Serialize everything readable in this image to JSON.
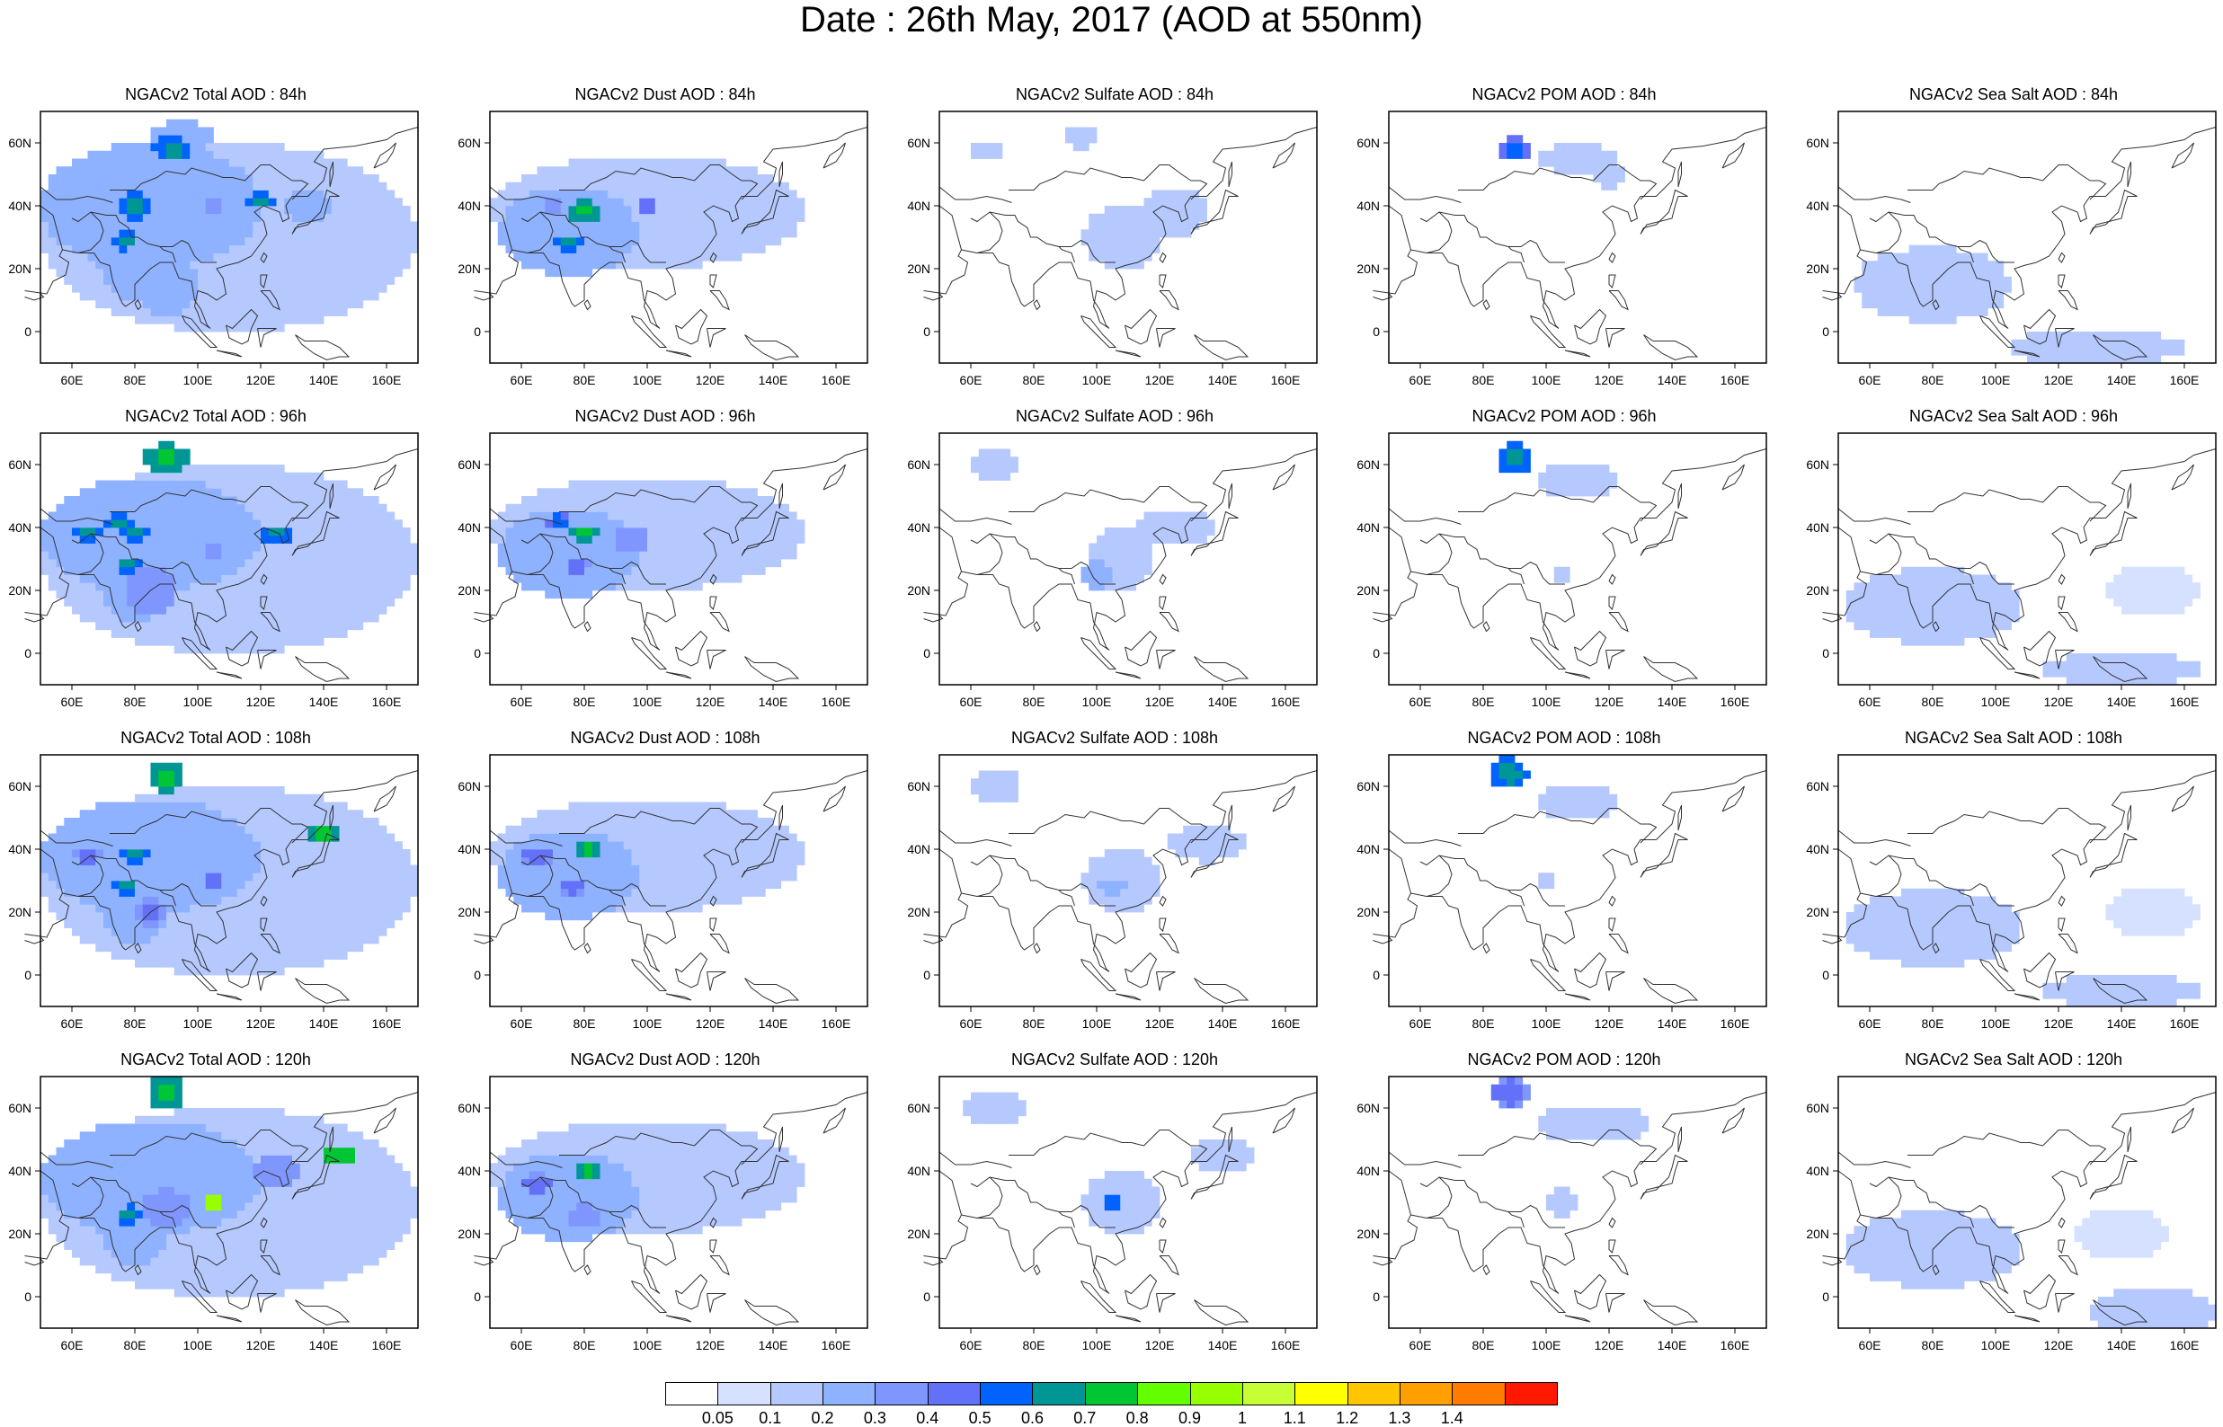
{
  "title": "Date : 26th May, 2017 (AOD at 550nm)",
  "panels": [
    {
      "title": "NGACv2 Total AOD : 84h",
      "species": "total",
      "lead": 84
    },
    {
      "title": "NGACv2 Dust AOD : 84h",
      "species": "dust",
      "lead": 84
    },
    {
      "title": "NGACv2 Sulfate AOD : 84h",
      "species": "sulfate",
      "lead": 84
    },
    {
      "title": "NGACv2 POM AOD : 84h",
      "species": "pom",
      "lead": 84
    },
    {
      "title": "NGACv2 Sea Salt AOD : 84h",
      "species": "seasalt",
      "lead": 84
    },
    {
      "title": "NGACv2 Total AOD : 96h",
      "species": "total",
      "lead": 96
    },
    {
      "title": "NGACv2 Dust AOD : 96h",
      "species": "dust",
      "lead": 96
    },
    {
      "title": "NGACv2 Sulfate AOD : 96h",
      "species": "sulfate",
      "lead": 96
    },
    {
      "title": "NGACv2 POM AOD : 96h",
      "species": "pom",
      "lead": 96
    },
    {
      "title": "NGACv2 Sea Salt AOD : 96h",
      "species": "seasalt",
      "lead": 96
    },
    {
      "title": "NGACv2 Total AOD : 108h",
      "species": "total",
      "lead": 108
    },
    {
      "title": "NGACv2 Dust AOD : 108h",
      "species": "dust",
      "lead": 108
    },
    {
      "title": "NGACv2 Sulfate AOD : 108h",
      "species": "sulfate",
      "lead": 108
    },
    {
      "title": "NGACv2 POM AOD : 108h",
      "species": "pom",
      "lead": 108
    },
    {
      "title": "NGACv2 Sea Salt AOD : 108h",
      "species": "seasalt",
      "lead": 108
    },
    {
      "title": "NGACv2 Total AOD : 120h",
      "species": "total",
      "lead": 120
    },
    {
      "title": "NGACv2 Dust AOD : 120h",
      "species": "dust",
      "lead": 120
    },
    {
      "title": "NGACv2 Sulfate AOD : 120h",
      "species": "sulfate",
      "lead": 120
    },
    {
      "title": "NGACv2 POM AOD : 120h",
      "species": "pom",
      "lead": 120
    },
    {
      "title": "NGACv2 Sea Salt  AOD : 120h",
      "species": "seasalt",
      "lead": 120
    }
  ],
  "map_extent": {
    "lon": [
      50,
      170
    ],
    "lat": [
      -10,
      70
    ]
  },
  "lon_ticks": [
    "60E",
    "80E",
    "100E",
    "120E",
    "140E",
    "160E"
  ],
  "lon_tick_values": [
    60,
    80,
    100,
    120,
    140,
    160
  ],
  "lat_ticks": [
    "60N",
    "40N",
    "20N",
    "0"
  ],
  "lat_tick_values": [
    60,
    40,
    20,
    0
  ],
  "colorbar": {
    "levels": [
      "0.05",
      "0.1",
      "0.2",
      "0.3",
      "0.4",
      "0.5",
      "0.6",
      "0.7",
      "0.8",
      "0.9",
      "1",
      "1.1",
      "1.2",
      "1.3",
      "1.4"
    ],
    "colors": [
      "#ffffff",
      "#d6e1ff",
      "#b5c9ff",
      "#8eb2ff",
      "#7f96ff",
      "#6370f8",
      "#0063ff",
      "#009696",
      "#00c633",
      "#63ff00",
      "#96ff00",
      "#c6ff33",
      "#ffff00",
      "#ffc600",
      "#ffa000",
      "#ff7c00",
      "#ff1900"
    ]
  },
  "colors": {
    "coastline": "#333333",
    "frame": "#000000"
  },
  "chart_data": {
    "type": "heatmap",
    "variable": "AOD at 550nm",
    "date": "26th May, 2017",
    "x_range": [
      50,
      170
    ],
    "y_range": [
      -10,
      70
    ],
    "rows_lead_hours": [
      84,
      96,
      108,
      120
    ],
    "columns_species": [
      "Total",
      "Dust",
      "Sulfate",
      "POM",
      "Sea Salt"
    ],
    "levels": [
      0.05,
      0.1,
      0.2,
      0.3,
      0.4,
      0.5,
      0.6,
      0.7,
      0.8,
      0.9,
      1,
      1.1,
      1.2,
      1.3,
      1.4
    ],
    "notable_maxima": [
      {
        "species": "Total",
        "lead": 84,
        "lon": 92,
        "lat": 58,
        "aod": 0.8
      },
      {
        "species": "Total",
        "lead": 96,
        "lon": 90,
        "lat": 62,
        "aod": 0.8
      },
      {
        "species": "Total",
        "lead": 108,
        "lon": 90,
        "lat": 62,
        "aod": 0.8
      },
      {
        "species": "Total",
        "lead": 120,
        "lon": 90,
        "lat": 65,
        "aod": 0.8
      },
      {
        "species": "Total",
        "lead": 120,
        "lon": 105,
        "lat": 30,
        "aod": 1.1
      },
      {
        "species": "Total",
        "lead": 120,
        "lon": 145,
        "lat": 45,
        "aod": 0.9
      },
      {
        "species": "Dust",
        "lead": 84,
        "lon": 80,
        "lat": 38,
        "aod": 0.8
      },
      {
        "species": "Sulfate",
        "lead": 120,
        "lon": 105,
        "lat": 30,
        "aod": 0.8
      },
      {
        "species": "POM",
        "lead": 84,
        "lon": 90,
        "lat": 58,
        "aod": 0.6
      },
      {
        "species": "POM",
        "lead": 96,
        "lon": 90,
        "lat": 60,
        "aod": 0.7
      },
      {
        "species": "POM",
        "lead": 108,
        "lon": 88,
        "lat": 62,
        "aod": 0.7
      },
      {
        "species": "POM",
        "lead": 120,
        "lon": 88,
        "lat": 65,
        "aod": 0.5
      }
    ]
  }
}
